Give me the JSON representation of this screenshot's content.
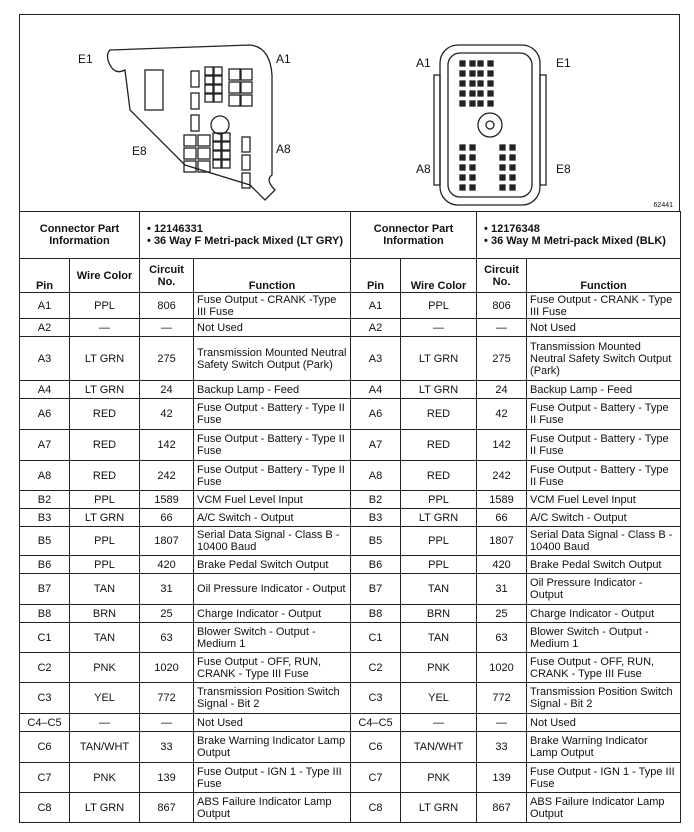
{
  "diagram": {
    "left_labels": {
      "e1": "E1",
      "a1": "A1",
      "e8": "E8",
      "a8": "A8"
    },
    "right_labels": {
      "a1": "A1",
      "e1": "E1",
      "a8": "A8",
      "e8": "E8"
    },
    "figure_id": "62441"
  },
  "connectors": [
    {
      "info_label": "Connector Part Information",
      "part": "12146331",
      "desc": "36 Way F Metri-pack Mixed (LT GRY)"
    },
    {
      "info_label": "Connector Part Information",
      "part": "12176348",
      "desc": "36 Way M Metri-pack Mixed (BLK)"
    }
  ],
  "headers": [
    {
      "pin": "Pin",
      "wire": "Wire Color",
      "circuit": "Circuit No.",
      "function": "Function"
    },
    {
      "pin": "Pin",
      "wire": "Wire Color",
      "circuit": "Circuit No.",
      "function": "Function"
    }
  ],
  "rows": [
    {
      "pin": "A1",
      "wire": "PPL",
      "circuit": "806",
      "f1": "Fuse Output - CRANK -Type III Fuse",
      "f2": "Fuse Output - CRANK - Type III Fuse"
    },
    {
      "pin": "A2",
      "wire": "—",
      "circuit": "—",
      "f1": "Not Used",
      "f2": "Not Used"
    },
    {
      "pin": "A3",
      "wire": "LT GRN",
      "circuit": "275",
      "f1": "Transmission Mounted Neutral Safety Switch Output (Park)",
      "f2": "Transmission Mounted Neutral Safety Switch Output (Park)"
    },
    {
      "pin": "A4",
      "wire": "LT GRN",
      "circuit": "24",
      "f1": "Backup Lamp - Feed",
      "f2": "Backup Lamp - Feed"
    },
    {
      "pin": "A6",
      "wire": "RED",
      "circuit": "42",
      "f1": "Fuse Output - Battery - Type II Fuse",
      "f2": "Fuse Output - Battery - Type II Fuse"
    },
    {
      "pin": "A7",
      "wire": "RED",
      "circuit": "142",
      "f1": "Fuse Output - Battery - Type II Fuse",
      "f2": "Fuse Output - Battery - Type II Fuse"
    },
    {
      "pin": "A8",
      "wire": "RED",
      "circuit": "242",
      "f1": "Fuse Output - Battery - Type II Fuse",
      "f2": "Fuse Output - Battery - Type II Fuse"
    },
    {
      "pin": "B2",
      "wire": "PPL",
      "circuit": "1589",
      "f1": "VCM Fuel Level Input",
      "f2": "VCM Fuel Level Input"
    },
    {
      "pin": "B3",
      "wire": "LT GRN",
      "circuit": "66",
      "f1": "A/C Switch - Output",
      "f2": "A/C Switch - Output"
    },
    {
      "pin": "B5",
      "wire": "PPL",
      "circuit": "1807",
      "f1": "Serial Data Signal - Class B - 10400 Baud",
      "f2": "Serial Data Signal - Class B - 10400 Baud"
    },
    {
      "pin": "B6",
      "wire": "PPL",
      "circuit": "420",
      "f1": "Brake Pedal Switch Output",
      "f2": "Brake Pedal Switch Output"
    },
    {
      "pin": "B7",
      "wire": "TAN",
      "circuit": "31",
      "f1": "Oil Pressure Indicator - Output",
      "f2": "Oil Pressure Indicator - Output"
    },
    {
      "pin": "B8",
      "wire": "BRN",
      "circuit": "25",
      "f1": "Charge Indicator - Output",
      "f2": "Charge Indicator - Output"
    },
    {
      "pin": "C1",
      "wire": "TAN",
      "circuit": "63",
      "f1": "Blower Switch - Output - Medium 1",
      "f2": "Blower Switch - Output - Medium 1"
    },
    {
      "pin": "C2",
      "wire": "PNK",
      "circuit": "1020",
      "f1": "Fuse Output - OFF, RUN, CRANK - Type III Fuse",
      "f2": "Fuse Output - OFF, RUN, CRANK - Type III Fuse"
    },
    {
      "pin": "C3",
      "wire": "YEL",
      "circuit": "772",
      "f1": "Transmission Position Switch Signal - Bit 2",
      "f2": "Transmission Position Switch Signal - Bit 2"
    },
    {
      "pin": "C4–C5",
      "wire": "—",
      "circuit": "—",
      "f1": "Not Used",
      "f2": "Not Used"
    },
    {
      "pin": "C6",
      "wire": "TAN/WHT",
      "circuit": "33",
      "f1": "Brake Warning Indicator Lamp Output",
      "f2": "Brake Warning Indicator Lamp Output"
    },
    {
      "pin": "C7",
      "wire": "PNK",
      "circuit": "139",
      "f1": "Fuse Output - IGN 1 - Type III Fuse",
      "f2": "Fuse Output - IGN 1 - Type III Fuse"
    },
    {
      "pin": "C8",
      "wire": "LT GRN",
      "circuit": "867",
      "f1": "ABS Failure Indicator Lamp Output",
      "f2": "ABS Failure Indicator Lamp Output"
    }
  ]
}
